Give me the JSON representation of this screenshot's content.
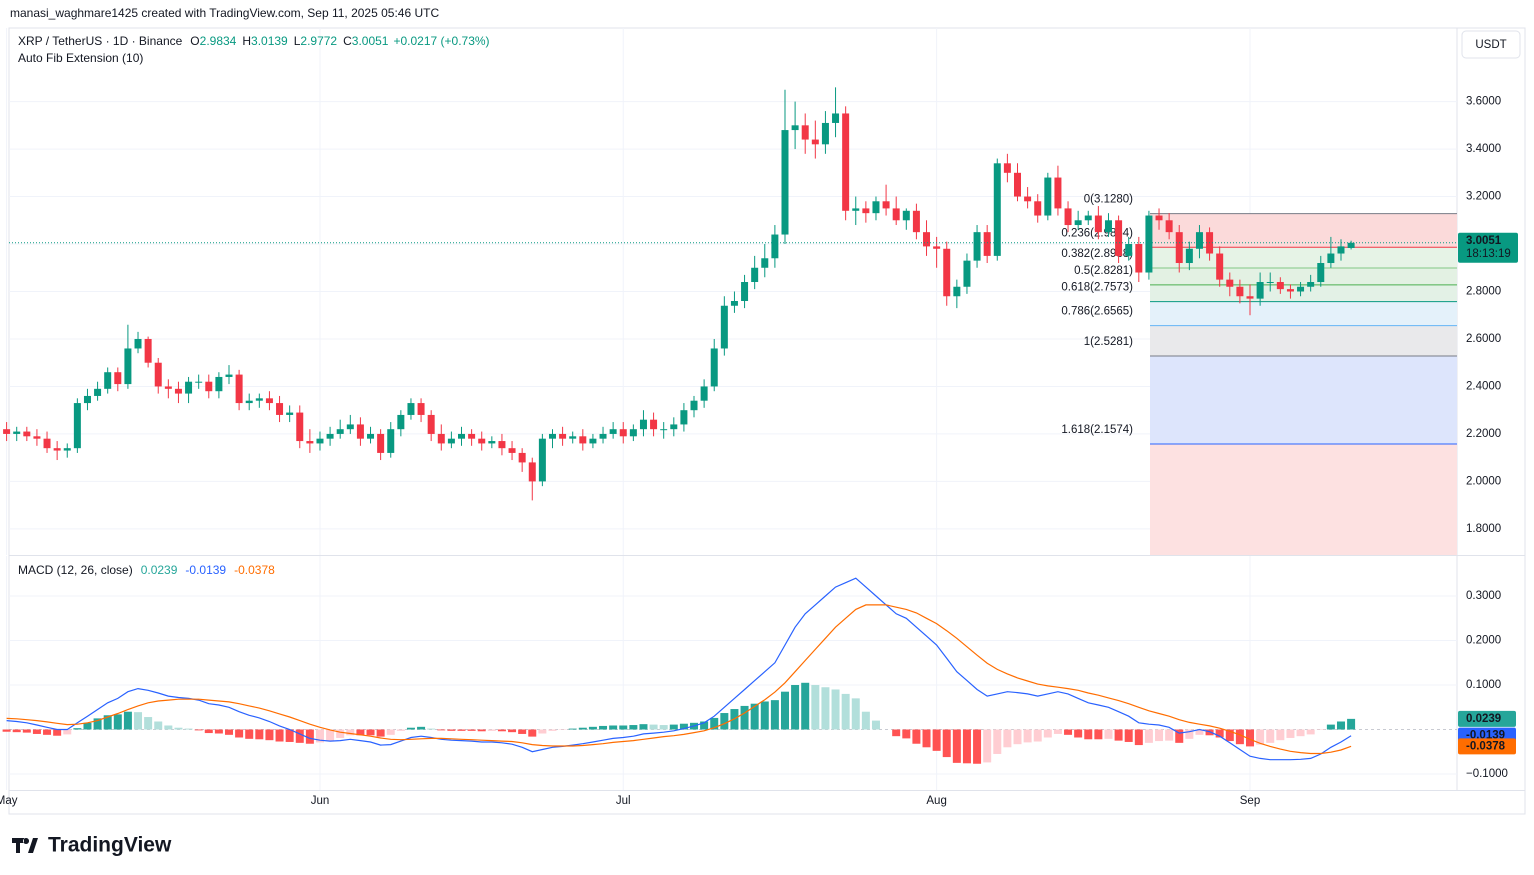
{
  "page": {
    "credit": "manasi_waghmare1425 created with TradingView.com, Sep 11, 2025 05:46 UTC",
    "currency_button": "USDT",
    "logo": "TradingView"
  },
  "chart_data": [
    {
      "type": "candlestick",
      "title": "XRP / TetherUS · 1D · Binance",
      "ohlc_keys": [
        "O",
        "H",
        "L",
        "C"
      ],
      "change": "+0.0217 (+0.73%)",
      "up_color": "#089981",
      "down_color": "#f23645",
      "grid": true,
      "candles": {
        "open": [
          2.22,
          2.2,
          2.21,
          2.19,
          2.18,
          2.14,
          2.13,
          2.14,
          2.33,
          2.36,
          2.39,
          2.46,
          2.41,
          2.56,
          2.6,
          2.5,
          2.4,
          2.39,
          2.37,
          2.42,
          2.42,
          2.38,
          2.44,
          2.45,
          2.33,
          2.34,
          2.35,
          2.33,
          2.28,
          2.29,
          2.17,
          2.16,
          2.18,
          2.2,
          2.22,
          2.24,
          2.18,
          2.2,
          2.12,
          2.22,
          2.28,
          2.33,
          2.28,
          2.2,
          2.16,
          2.18,
          2.2,
          2.18,
          2.16,
          2.17,
          2.14,
          2.12,
          2.08,
          2.0,
          2.18,
          2.2,
          2.18,
          2.19,
          2.16,
          2.18,
          2.2,
          2.22,
          2.19,
          2.22,
          2.26,
          2.22,
          2.22,
          2.24,
          2.3,
          2.34,
          2.4,
          2.56,
          2.74,
          2.76,
          2.84,
          2.9,
          2.94,
          3.04,
          3.48,
          3.5,
          3.44,
          3.42,
          3.51,
          3.55,
          3.14,
          3.15,
          3.13,
          3.18,
          3.15,
          3.1,
          3.14,
          3.05,
          2.99,
          2.98,
          2.78,
          2.82,
          2.93,
          3.05,
          2.95,
          3.34,
          3.3,
          3.2,
          3.18,
          3.12,
          3.28,
          3.15,
          3.08,
          3.1,
          3.12,
          3.05,
          3.1,
          2.95,
          3.0,
          2.88,
          3.12,
          3.1,
          3.05,
          2.92,
          2.98,
          3.05,
          2.96,
          2.85,
          2.82,
          2.78,
          2.77,
          2.84,
          2.84,
          2.81,
          2.8,
          2.82,
          2.84,
          2.92,
          2.96,
          2.9834
        ],
        "high": [
          2.25,
          2.23,
          2.23,
          2.22,
          2.21,
          2.17,
          2.16,
          2.35,
          2.39,
          2.42,
          2.48,
          2.48,
          2.66,
          2.63,
          2.61,
          2.52,
          2.43,
          2.42,
          2.44,
          2.45,
          2.45,
          2.46,
          2.49,
          2.47,
          2.37,
          2.37,
          2.38,
          2.36,
          2.32,
          2.32,
          2.22,
          2.21,
          2.23,
          2.26,
          2.28,
          2.27,
          2.23,
          2.22,
          2.25,
          2.3,
          2.35,
          2.35,
          2.3,
          2.24,
          2.21,
          2.23,
          2.22,
          2.21,
          2.19,
          2.2,
          2.17,
          2.14,
          2.1,
          2.2,
          2.22,
          2.23,
          2.21,
          2.22,
          2.2,
          2.23,
          2.25,
          2.25,
          2.24,
          2.3,
          2.29,
          2.25,
          2.27,
          2.33,
          2.36,
          2.43,
          2.6,
          2.78,
          2.8,
          2.87,
          2.95,
          3.0,
          3.08,
          3.65,
          3.6,
          3.55,
          3.52,
          3.56,
          3.66,
          3.58,
          3.2,
          3.18,
          3.2,
          3.25,
          3.2,
          3.15,
          3.17,
          3.1,
          3.03,
          3.01,
          2.85,
          2.96,
          3.08,
          3.08,
          3.36,
          3.38,
          3.34,
          3.24,
          3.21,
          3.3,
          3.33,
          3.18,
          3.14,
          3.14,
          3.16,
          3.13,
          3.12,
          3.03,
          3.03,
          3.14,
          3.15,
          3.13,
          3.08,
          3.01,
          3.08,
          3.07,
          2.99,
          2.88,
          2.85,
          2.83,
          2.88,
          2.88,
          2.86,
          2.83,
          2.84,
          2.87,
          2.95,
          3.03,
          3.02,
          3.0139
        ],
        "low": [
          2.17,
          2.17,
          2.17,
          2.15,
          2.12,
          2.09,
          2.1,
          2.12,
          2.3,
          2.34,
          2.37,
          2.38,
          2.39,
          2.54,
          2.48,
          2.37,
          2.35,
          2.33,
          2.33,
          2.39,
          2.35,
          2.35,
          2.41,
          2.3,
          2.3,
          2.31,
          2.3,
          2.25,
          2.25,
          2.14,
          2.12,
          2.13,
          2.15,
          2.18,
          2.2,
          2.15,
          2.16,
          2.09,
          2.1,
          2.19,
          2.26,
          2.25,
          2.17,
          2.13,
          2.14,
          2.15,
          2.15,
          2.13,
          2.14,
          2.11,
          2.09,
          2.04,
          1.92,
          1.98,
          2.14,
          2.15,
          2.16,
          2.13,
          2.14,
          2.16,
          2.18,
          2.16,
          2.17,
          2.19,
          2.19,
          2.18,
          2.19,
          2.21,
          2.27,
          2.31,
          2.38,
          2.53,
          2.71,
          2.73,
          2.81,
          2.86,
          2.9,
          3.0,
          3.4,
          3.38,
          3.36,
          3.38,
          3.45,
          3.1,
          3.08,
          3.09,
          3.1,
          3.12,
          3.08,
          3.06,
          3.02,
          2.95,
          2.9,
          2.74,
          2.73,
          2.79,
          2.9,
          2.92,
          2.93,
          3.26,
          3.18,
          3.15,
          3.09,
          3.1,
          3.12,
          3.05,
          3.06,
          3.08,
          3.02,
          3.03,
          2.92,
          2.93,
          2.84,
          2.85,
          3.06,
          3.02,
          2.88,
          2.89,
          2.94,
          2.93,
          2.82,
          2.78,
          2.75,
          2.7,
          2.74,
          2.8,
          2.79,
          2.77,
          2.78,
          2.8,
          2.82,
          2.9,
          2.93,
          2.9772
        ],
        "close": [
          2.2,
          2.21,
          2.19,
          2.18,
          2.14,
          2.13,
          2.14,
          2.33,
          2.36,
          2.39,
          2.46,
          2.41,
          2.56,
          2.6,
          2.5,
          2.4,
          2.39,
          2.37,
          2.42,
          2.42,
          2.38,
          2.44,
          2.45,
          2.33,
          2.34,
          2.35,
          2.33,
          2.28,
          2.29,
          2.17,
          2.16,
          2.18,
          2.2,
          2.22,
          2.24,
          2.18,
          2.2,
          2.12,
          2.22,
          2.28,
          2.33,
          2.28,
          2.2,
          2.16,
          2.18,
          2.2,
          2.18,
          2.16,
          2.17,
          2.14,
          2.12,
          2.08,
          2.0,
          2.18,
          2.2,
          2.18,
          2.19,
          2.16,
          2.18,
          2.2,
          2.22,
          2.19,
          2.22,
          2.26,
          2.22,
          2.22,
          2.24,
          2.3,
          2.34,
          2.4,
          2.56,
          2.74,
          2.76,
          2.84,
          2.9,
          2.94,
          3.04,
          3.48,
          3.5,
          3.44,
          3.42,
          3.51,
          3.55,
          3.14,
          3.15,
          3.13,
          3.18,
          3.15,
          3.1,
          3.14,
          3.05,
          2.99,
          2.98,
          2.78,
          2.82,
          2.93,
          3.05,
          2.95,
          3.34,
          3.3,
          3.2,
          3.18,
          3.12,
          3.28,
          3.15,
          3.08,
          3.1,
          3.12,
          3.05,
          3.1,
          2.95,
          3.0,
          2.88,
          3.12,
          3.1,
          3.05,
          2.92,
          2.98,
          3.05,
          2.96,
          2.85,
          2.82,
          2.78,
          2.77,
          2.84,
          2.84,
          2.81,
          2.8,
          2.82,
          2.84,
          2.92,
          2.96,
          2.99,
          3.0051
        ]
      },
      "countdown": "18:13:19",
      "ylim": [
        1.69,
        3.91
      ],
      "yticks": [
        {
          "value": 1.8,
          "label": "1.8000"
        },
        {
          "value": 2.0,
          "label": "2.0000"
        },
        {
          "value": 2.2,
          "label": "2.2000"
        },
        {
          "value": 2.4,
          "label": "2.4000"
        },
        {
          "value": 2.6,
          "label": "2.6000"
        },
        {
          "value": 2.8,
          "label": "2.8000"
        },
        {
          "value": 3.0,
          "label": "3.0000"
        },
        {
          "value": 3.2,
          "label": "3.2000"
        },
        {
          "value": 3.4,
          "label": "3.4000"
        },
        {
          "value": 3.6,
          "label": "3.6000"
        }
      ],
      "xticks": [
        {
          "value": 0,
          "label": "May"
        },
        {
          "value": 31,
          "label": "Jun"
        },
        {
          "value": 61,
          "label": "Jul"
        },
        {
          "value": 92,
          "label": "Aug"
        },
        {
          "value": 123,
          "label": "Sep"
        }
      ],
      "fib": {
        "title": "Auto Fib Extension (10)",
        "levels": [
          {
            "label": "0(3.1280)",
            "value": 3.128,
            "color": "#787b86",
            "fill": "#fbdada"
          },
          {
            "label": "0.236(2.9864)",
            "value": 2.9864,
            "color": "#f23645",
            "fill": "#e6f3e6"
          },
          {
            "label": "0.382(2.8988)",
            "value": 2.8988,
            "color": "#81c784",
            "fill": "#e3f1e3"
          },
          {
            "label": "0.5(2.8281)",
            "value": 2.8281,
            "color": "#4caf50",
            "fill": "#e3f1e6"
          },
          {
            "label": "0.618(2.7573)",
            "value": 2.7573,
            "color": "#089981",
            "fill": "#e4f1fa"
          },
          {
            "label": "0.786(2.6565)",
            "value": 2.6565,
            "color": "#64b5f6",
            "fill": "#e9e9eb"
          },
          {
            "label": "1(2.5281)",
            "value": 2.5281,
            "color": "#787b86",
            "fill": "#dde5fc"
          },
          {
            "label": "1.618(2.1574)",
            "value": 2.1574,
            "color": "#2962ff",
            "fill": "#fde1e1"
          }
        ]
      }
    },
    {
      "type": "macd",
      "title": "MACD (12, 26, close)",
      "ylim": [
        -0.136,
        0.39
      ],
      "yticks": [
        {
          "value": -0.1,
          "label": "−0.1000"
        },
        {
          "value": 0.1,
          "label": "0.1000"
        },
        {
          "value": 0.2,
          "label": "0.2000"
        },
        {
          "value": 0.3,
          "label": "0.3000"
        }
      ],
      "histogram": {
        "colors": [
          "#26a69a",
          "#b2dfdb",
          "#ff5252",
          "#ffcdd2"
        ],
        "values": [
          -0.005,
          -0.006,
          -0.007,
          -0.01,
          -0.012,
          -0.014,
          -0.011,
          0.003,
          0.015,
          0.025,
          0.032,
          0.034,
          0.04,
          0.039,
          0.028,
          0.018,
          0.009,
          0.004,
          0.002,
          -0.002,
          -0.008,
          -0.009,
          -0.012,
          -0.018,
          -0.021,
          -0.022,
          -0.024,
          -0.027,
          -0.028,
          -0.03,
          -0.032,
          -0.029,
          -0.025,
          -0.019,
          -0.013,
          -0.013,
          -0.013,
          -0.016,
          -0.012,
          -0.003,
          0.004,
          0.006,
          0.002,
          -0.002,
          -0.003,
          -0.003,
          -0.003,
          -0.004,
          -0.003,
          -0.004,
          -0.006,
          -0.01,
          -0.016,
          -0.009,
          -0.003,
          -0.001,
          0.002,
          0.004,
          0.006,
          0.008,
          0.009,
          0.009,
          0.01,
          0.012,
          0.011,
          0.01,
          0.011,
          0.013,
          0.015,
          0.018,
          0.026,
          0.037,
          0.046,
          0.053,
          0.058,
          0.063,
          0.066,
          0.085,
          0.1,
          0.105,
          0.1,
          0.095,
          0.09,
          0.08,
          0.07,
          0.04,
          0.02,
          0,
          -0.015,
          -0.02,
          -0.032,
          -0.04,
          -0.048,
          -0.062,
          -0.075,
          -0.076,
          -0.077,
          -0.074,
          -0.055,
          -0.04,
          -0.033,
          -0.029,
          -0.027,
          -0.018,
          -0.01,
          -0.012,
          -0.018,
          -0.022,
          -0.022,
          -0.021,
          -0.025,
          -0.028,
          -0.035,
          -0.03,
          -0.026,
          -0.025,
          -0.03,
          -0.021,
          -0.012,
          -0.013,
          -0.018,
          -0.026,
          -0.033,
          -0.038,
          -0.034,
          -0.03,
          -0.024,
          -0.019,
          -0.015,
          -0.011,
          -0.001,
          0.011,
          0.018,
          0.0239
        ]
      },
      "series": [
        {
          "name": "MACD",
          "color": "#2962ff",
          "values": [
            0.02,
            0.018,
            0.015,
            0.01,
            0.005,
            0,
            0,
            0.015,
            0.03,
            0.045,
            0.06,
            0.07,
            0.085,
            0.092,
            0.088,
            0.082,
            0.075,
            0.072,
            0.07,
            0.066,
            0.058,
            0.055,
            0.05,
            0.04,
            0.032,
            0.026,
            0.018,
            0.008,
            0,
            -0.01,
            -0.02,
            -0.024,
            -0.026,
            -0.025,
            -0.022,
            -0.025,
            -0.028,
            -0.035,
            -0.034,
            -0.026,
            -0.018,
            -0.015,
            -0.018,
            -0.022,
            -0.024,
            -0.025,
            -0.026,
            -0.028,
            -0.028,
            -0.03,
            -0.033,
            -0.04,
            -0.05,
            -0.045,
            -0.04,
            -0.038,
            -0.035,
            -0.032,
            -0.028,
            -0.024,
            -0.02,
            -0.018,
            -0.015,
            -0.01,
            -0.008,
            -0.006,
            -0.003,
            0.002,
            0.008,
            0.015,
            0.03,
            0.05,
            0.07,
            0.09,
            0.11,
            0.13,
            0.15,
            0.19,
            0.23,
            0.26,
            0.28,
            0.3,
            0.32,
            0.33,
            0.34,
            0.32,
            0.3,
            0.28,
            0.26,
            0.25,
            0.23,
            0.21,
            0.19,
            0.16,
            0.13,
            0.11,
            0.09,
            0.075,
            0.08,
            0.085,
            0.083,
            0.08,
            0.075,
            0.08,
            0.085,
            0.08,
            0.07,
            0.06,
            0.055,
            0.05,
            0.04,
            0.03,
            0.015,
            0.012,
            0.01,
            0.005,
            -0.008,
            -0.005,
            0,
            -0.005,
            -0.015,
            -0.03,
            -0.045,
            -0.06,
            -0.065,
            -0.068,
            -0.068,
            -0.068,
            -0.067,
            -0.065,
            -0.055,
            -0.04,
            -0.028,
            -0.0139
          ]
        },
        {
          "name": "Signal",
          "color": "#ff6d00",
          "values": [
            0.025,
            0.024,
            0.022,
            0.02,
            0.017,
            0.014,
            0.011,
            0.012,
            0.015,
            0.02,
            0.028,
            0.036,
            0.045,
            0.053,
            0.06,
            0.064,
            0.066,
            0.068,
            0.068,
            0.068,
            0.066,
            0.064,
            0.062,
            0.058,
            0.053,
            0.048,
            0.042,
            0.035,
            0.028,
            0.02,
            0.012,
            0.005,
            -0.001,
            -0.006,
            -0.009,
            -0.012,
            -0.015,
            -0.019,
            -0.022,
            -0.023,
            -0.022,
            -0.021,
            -0.02,
            -0.02,
            -0.021,
            -0.022,
            -0.023,
            -0.024,
            -0.025,
            -0.026,
            -0.027,
            -0.03,
            -0.034,
            -0.036,
            -0.037,
            -0.037,
            -0.037,
            -0.036,
            -0.034,
            -0.032,
            -0.029,
            -0.027,
            -0.025,
            -0.022,
            -0.019,
            -0.016,
            -0.014,
            -0.011,
            -0.007,
            -0.003,
            0.004,
            0.013,
            0.024,
            0.037,
            0.052,
            0.067,
            0.084,
            0.105,
            0.13,
            0.155,
            0.18,
            0.205,
            0.23,
            0.25,
            0.27,
            0.28,
            0.28,
            0.28,
            0.275,
            0.27,
            0.262,
            0.25,
            0.238,
            0.222,
            0.205,
            0.186,
            0.167,
            0.149,
            0.135,
            0.125,
            0.116,
            0.109,
            0.102,
            0.098,
            0.095,
            0.092,
            0.088,
            0.082,
            0.077,
            0.071,
            0.065,
            0.058,
            0.05,
            0.042,
            0.036,
            0.03,
            0.022,
            0.016,
            0.012,
            0.008,
            0.003,
            -0.004,
            -0.012,
            -0.022,
            -0.031,
            -0.038,
            -0.044,
            -0.049,
            -0.052,
            -0.054,
            -0.054,
            -0.051,
            -0.046,
            -0.0378
          ]
        }
      ]
    }
  ]
}
